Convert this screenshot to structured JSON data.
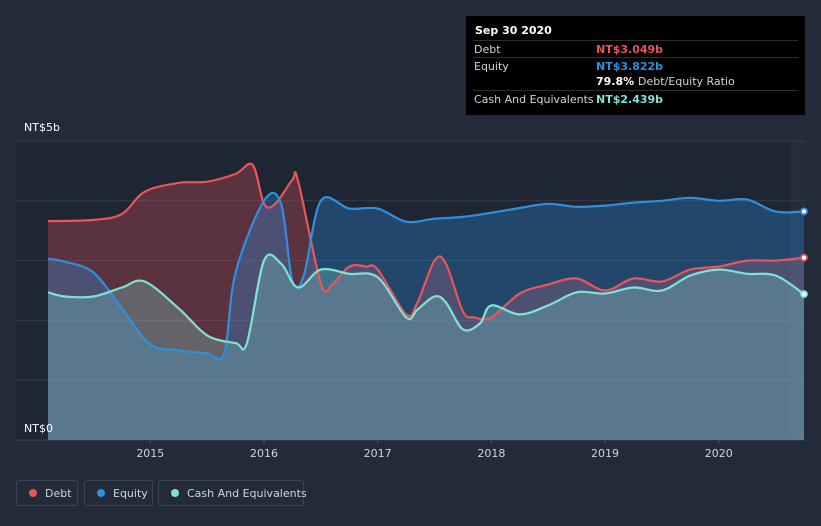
{
  "chart_data": {
    "type": "area",
    "y_unit_labels": {
      "top": "NT$5b",
      "bottom": "NT$0"
    },
    "ylim": [
      0,
      5
    ],
    "xlim": [
      2014.1,
      2020.75
    ],
    "x_ticks": [
      2015,
      2016,
      2017,
      2018,
      2019,
      2020
    ],
    "x_tick_labels": [
      "2015",
      "2016",
      "2017",
      "2018",
      "2019",
      "2020"
    ],
    "grid": true,
    "series": [
      {
        "name": "Debt",
        "color": "#e8555a",
        "points": [
          [
            2014.1,
            3.66
          ],
          [
            2014.5,
            3.68
          ],
          [
            2014.75,
            3.78
          ],
          [
            2014.95,
            4.15
          ],
          [
            2015.25,
            4.3
          ],
          [
            2015.5,
            4.32
          ],
          [
            2015.75,
            4.45
          ],
          [
            2015.9,
            4.6
          ],
          [
            2016.0,
            3.95
          ],
          [
            2016.1,
            3.95
          ],
          [
            2016.25,
            4.35
          ],
          [
            2016.3,
            4.33
          ],
          [
            2016.5,
            2.62
          ],
          [
            2016.6,
            2.6
          ],
          [
            2016.75,
            2.9
          ],
          [
            2016.9,
            2.9
          ],
          [
            2017.0,
            2.85
          ],
          [
            2017.25,
            2.1
          ],
          [
            2017.35,
            2.3
          ],
          [
            2017.5,
            3.0
          ],
          [
            2017.6,
            2.95
          ],
          [
            2017.75,
            2.15
          ],
          [
            2017.85,
            2.05
          ],
          [
            2018.0,
            2.05
          ],
          [
            2018.25,
            2.45
          ],
          [
            2018.5,
            2.6
          ],
          [
            2018.75,
            2.7
          ],
          [
            2019.0,
            2.5
          ],
          [
            2019.25,
            2.7
          ],
          [
            2019.5,
            2.65
          ],
          [
            2019.75,
            2.85
          ],
          [
            2020.0,
            2.9
          ],
          [
            2020.25,
            3.0
          ],
          [
            2020.5,
            3.0
          ],
          [
            2020.75,
            3.049
          ]
        ]
      },
      {
        "name": "Equity",
        "color": "#2f8fdf",
        "points": [
          [
            2014.1,
            3.03
          ],
          [
            2014.25,
            2.98
          ],
          [
            2014.5,
            2.8
          ],
          [
            2014.75,
            2.2
          ],
          [
            2015.0,
            1.6
          ],
          [
            2015.25,
            1.5
          ],
          [
            2015.5,
            1.45
          ],
          [
            2015.65,
            1.45
          ],
          [
            2015.75,
            2.8
          ],
          [
            2016.0,
            4.0
          ],
          [
            2016.15,
            3.95
          ],
          [
            2016.25,
            2.65
          ],
          [
            2016.35,
            2.75
          ],
          [
            2016.5,
            4.0
          ],
          [
            2016.75,
            3.87
          ],
          [
            2017.0,
            3.87
          ],
          [
            2017.25,
            3.65
          ],
          [
            2017.5,
            3.7
          ],
          [
            2017.75,
            3.73
          ],
          [
            2018.0,
            3.8
          ],
          [
            2018.25,
            3.88
          ],
          [
            2018.5,
            3.95
          ],
          [
            2018.75,
            3.9
          ],
          [
            2019.0,
            3.92
          ],
          [
            2019.25,
            3.97
          ],
          [
            2019.5,
            4.0
          ],
          [
            2019.75,
            4.05
          ],
          [
            2020.0,
            4.0
          ],
          [
            2020.25,
            4.02
          ],
          [
            2020.5,
            3.82
          ],
          [
            2020.75,
            3.822
          ]
        ]
      },
      {
        "name": "Cash And Equivalents",
        "color": "#7fe3d4",
        "points": [
          [
            2014.1,
            2.47
          ],
          [
            2014.25,
            2.4
          ],
          [
            2014.5,
            2.4
          ],
          [
            2014.75,
            2.55
          ],
          [
            2014.95,
            2.65
          ],
          [
            2015.25,
            2.2
          ],
          [
            2015.5,
            1.75
          ],
          [
            2015.75,
            1.62
          ],
          [
            2015.85,
            1.62
          ],
          [
            2016.0,
            3.0
          ],
          [
            2016.15,
            2.95
          ],
          [
            2016.3,
            2.55
          ],
          [
            2016.5,
            2.85
          ],
          [
            2016.75,
            2.78
          ],
          [
            2017.0,
            2.72
          ],
          [
            2017.25,
            2.05
          ],
          [
            2017.35,
            2.18
          ],
          [
            2017.5,
            2.4
          ],
          [
            2017.6,
            2.3
          ],
          [
            2017.75,
            1.85
          ],
          [
            2017.9,
            1.95
          ],
          [
            2018.0,
            2.25
          ],
          [
            2018.25,
            2.1
          ],
          [
            2018.5,
            2.25
          ],
          [
            2018.75,
            2.47
          ],
          [
            2019.0,
            2.45
          ],
          [
            2019.25,
            2.55
          ],
          [
            2019.5,
            2.5
          ],
          [
            2019.75,
            2.75
          ],
          [
            2020.0,
            2.85
          ],
          [
            2020.25,
            2.78
          ],
          [
            2020.5,
            2.75
          ],
          [
            2020.75,
            2.439
          ]
        ]
      }
    ]
  },
  "tooltip": {
    "date": "Sep 30 2020",
    "debt_label": "Debt",
    "debt_value": "NT$3.049b",
    "equity_label": "Equity",
    "equity_value": "NT$3.822b",
    "ratio_value": "79.8%",
    "ratio_label": "Debt/Equity Ratio",
    "cash_label": "Cash And Equivalents",
    "cash_value": "NT$2.439b"
  },
  "legend": {
    "debt": "Debt",
    "equity": "Equity",
    "cash": "Cash And Equivalents"
  }
}
